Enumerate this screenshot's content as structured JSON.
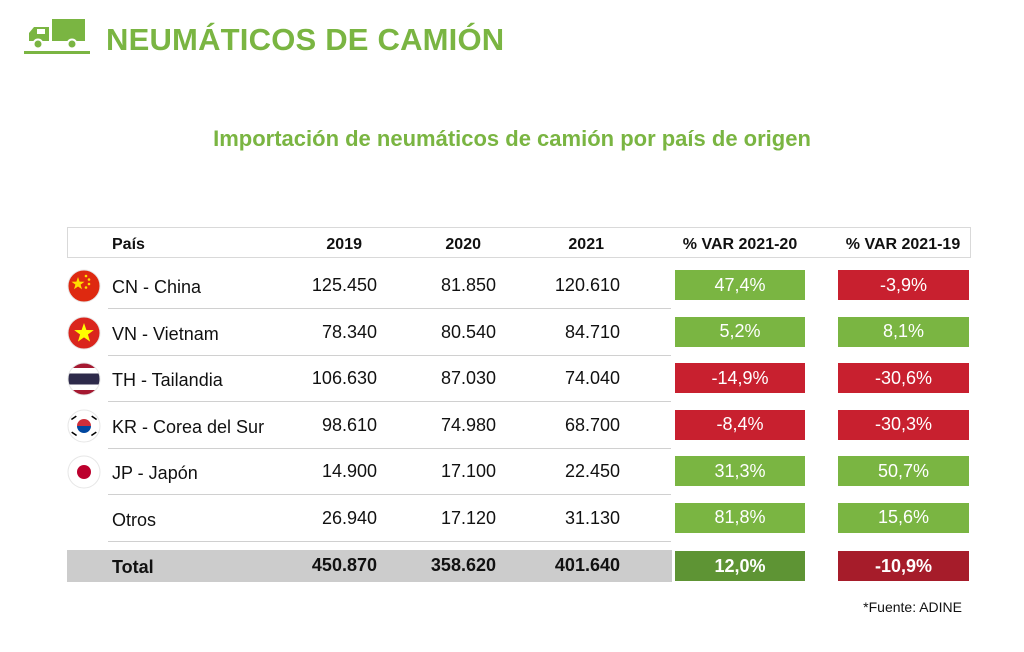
{
  "header": {
    "title": "NEUMÁTICOS DE CAMIÓN",
    "icon": "truck-icon"
  },
  "chart_data": {
    "type": "table",
    "title": "Importación de neumáticos de camión por país de origen",
    "columns": [
      "País",
      "2019",
      "2020",
      "2021",
      "% VAR 2021-20",
      "% VAR 2021-19"
    ],
    "rows": [
      {
        "flag": "cn-flag-icon",
        "country": "CN - China",
        "v2019": "125.450",
        "v2020": "81.850",
        "v2021": "120.610",
        "var2120": "47,4%",
        "var2119": "-3,9%"
      },
      {
        "flag": "vn-flag-icon",
        "country": "VN - Vietnam",
        "v2019": "78.340",
        "v2020": "80.540",
        "v2021": "84.710",
        "var2120": "5,2%",
        "var2119": "8,1%"
      },
      {
        "flag": "th-flag-icon",
        "country": "TH - Tailandia",
        "v2019": "106.630",
        "v2020": "87.030",
        "v2021": "74.040",
        "var2120": "-14,9%",
        "var2119": "-30,6%"
      },
      {
        "flag": "kr-flag-icon",
        "country": "KR - Corea del Sur",
        "v2019": "98.610",
        "v2020": "74.980",
        "v2021": "68.700",
        "var2120": "-8,4%",
        "var2119": "-30,3%"
      },
      {
        "flag": "jp-flag-icon",
        "country": "JP - Japón",
        "v2019": "14.900",
        "v2020": "17.100",
        "v2021": "22.450",
        "var2120": "31,3%",
        "var2119": "50,7%"
      },
      {
        "flag": "",
        "country": "Otros",
        "v2019": "26.940",
        "v2020": "17.120",
        "v2021": "31.130",
        "var2120": "81,8%",
        "var2119": "15,6%"
      }
    ],
    "total": {
      "country": "Total",
      "v2019": "450.870",
      "v2020": "358.620",
      "v2021": "401.640",
      "var2120": "12,0%",
      "var2119": "-10,9%"
    }
  },
  "source": "*Fuente: ADINE",
  "colors": {
    "accent": "#7ab542",
    "positive": "#7ab542",
    "negative": "#c8202f",
    "positive_total": "#5e9434",
    "negative_total": "#a61c2a",
    "total_band": "#cccccc"
  }
}
